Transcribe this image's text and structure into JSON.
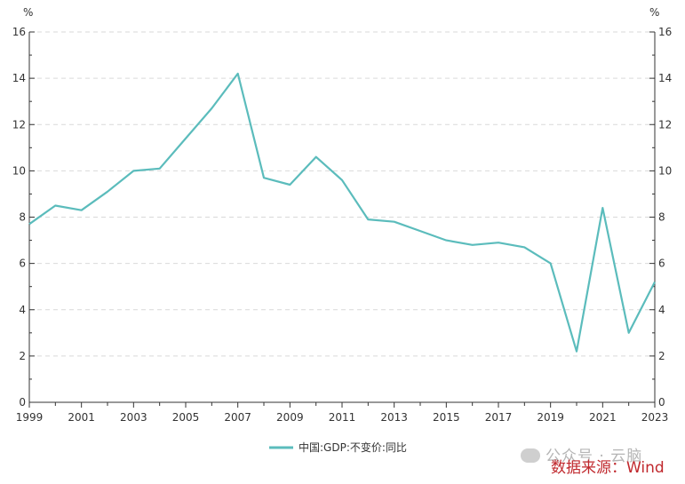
{
  "chart_data": {
    "type": "line",
    "left_unit": "%",
    "right_unit": "%",
    "ylim": [
      0,
      16
    ],
    "y_ticks": [
      0,
      2,
      4,
      6,
      8,
      10,
      12,
      14,
      16
    ],
    "x_tick_labels": [
      "1999",
      "2001",
      "2003",
      "2005",
      "2007",
      "2009",
      "2011",
      "2013",
      "2015",
      "2017",
      "2019",
      "2021",
      "2023"
    ],
    "xlim": [
      1999,
      2023
    ],
    "grid": "horizontal dashed",
    "legend_position": "bottom-center",
    "series": [
      {
        "name": "中国:GDP:不变价:同比",
        "color": "#5bbcbc",
        "x": [
          1999,
          2000,
          2001,
          2002,
          2003,
          2004,
          2005,
          2006,
          2007,
          2008,
          2009,
          2010,
          2011,
          2012,
          2013,
          2014,
          2015,
          2016,
          2017,
          2018,
          2019,
          2020,
          2021,
          2022,
          2023
        ],
        "y": [
          7.7,
          8.5,
          8.3,
          9.1,
          10.0,
          10.1,
          11.4,
          12.7,
          14.2,
          9.7,
          9.4,
          10.6,
          9.6,
          7.9,
          7.8,
          7.4,
          7.0,
          6.8,
          6.9,
          6.7,
          6.0,
          2.2,
          8.4,
          3.0,
          5.2
        ]
      }
    ]
  },
  "watermark": {
    "text": "公众号 · 云脑"
  },
  "source_text": "数据来源：Wind"
}
